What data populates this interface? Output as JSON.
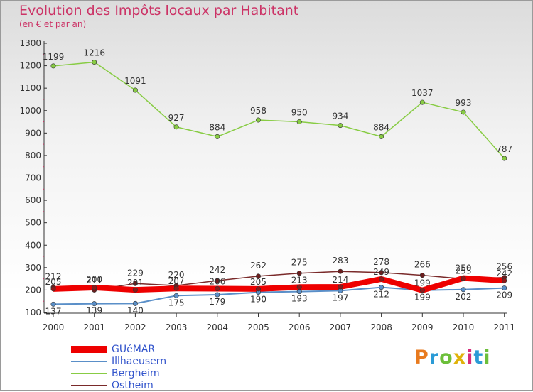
{
  "header": {
    "title": "Evolution des Impôts locaux par Habitant",
    "subtitle": "(en € et par an)"
  },
  "logo": {
    "text": "Proxiti",
    "colors": [
      "#e87a1e",
      "#2b9bd6",
      "#6cbf3a",
      "#e0b20a",
      "#d62b7a",
      "#2b9bd6",
      "#6cbf3a"
    ]
  },
  "chart_data": {
    "type": "line",
    "x": [
      "2000",
      "2001",
      "2002",
      "2003",
      "2004",
      "2005",
      "2006",
      "2007",
      "2008",
      "2009",
      "2010",
      "2011"
    ],
    "ylim": [
      100,
      1300
    ],
    "yticks": [
      "100",
      "200",
      "300",
      "400",
      "500",
      "600",
      "700",
      "800",
      "900",
      "1000",
      "1100",
      "1200",
      "1300"
    ],
    "grid": false,
    "legend_position": "bottom-left",
    "series": [
      {
        "name": "GUéMAR",
        "color": "#ee0000",
        "values": [
          205,
          211,
          201,
          207,
          206,
          205,
          213,
          214,
          249,
          199,
          253,
          242
        ],
        "labels": [
          "205",
          "211",
          "201",
          "207",
          "206",
          "205",
          "213",
          "214",
          "249",
          "199",
          "253",
          "242"
        ]
      },
      {
        "name": "Illhaeusern",
        "color": "#5a8fc8",
        "values": [
          137,
          139,
          140,
          175,
          179,
          190,
          193,
          197,
          212,
          199,
          202,
          209
        ],
        "labels": [
          "137",
          "139",
          "140",
          "175",
          "179",
          "190",
          "193",
          "197",
          "212",
          "199",
          "202",
          "209"
        ]
      },
      {
        "name": "Bergheim",
        "color": "#88cc44",
        "values": [
          1199,
          1216,
          1091,
          927,
          884,
          958,
          950,
          934,
          884,
          1037,
          993,
          787
        ],
        "labels": [
          "1199",
          "1216",
          "1091",
          "927",
          "884",
          "958",
          "950",
          "934",
          "884",
          "1037",
          "993",
          "787"
        ]
      },
      {
        "name": "Ostheim",
        "color": "#7a2a2a",
        "values": [
          212,
          200,
          229,
          220,
          242,
          262,
          275,
          283,
          278,
          266,
          250,
          256
        ],
        "labels": [
          "212",
          "200",
          "229",
          "220",
          "242",
          "262",
          "275",
          "283",
          "278",
          "266",
          "250",
          "256"
        ]
      }
    ]
  }
}
